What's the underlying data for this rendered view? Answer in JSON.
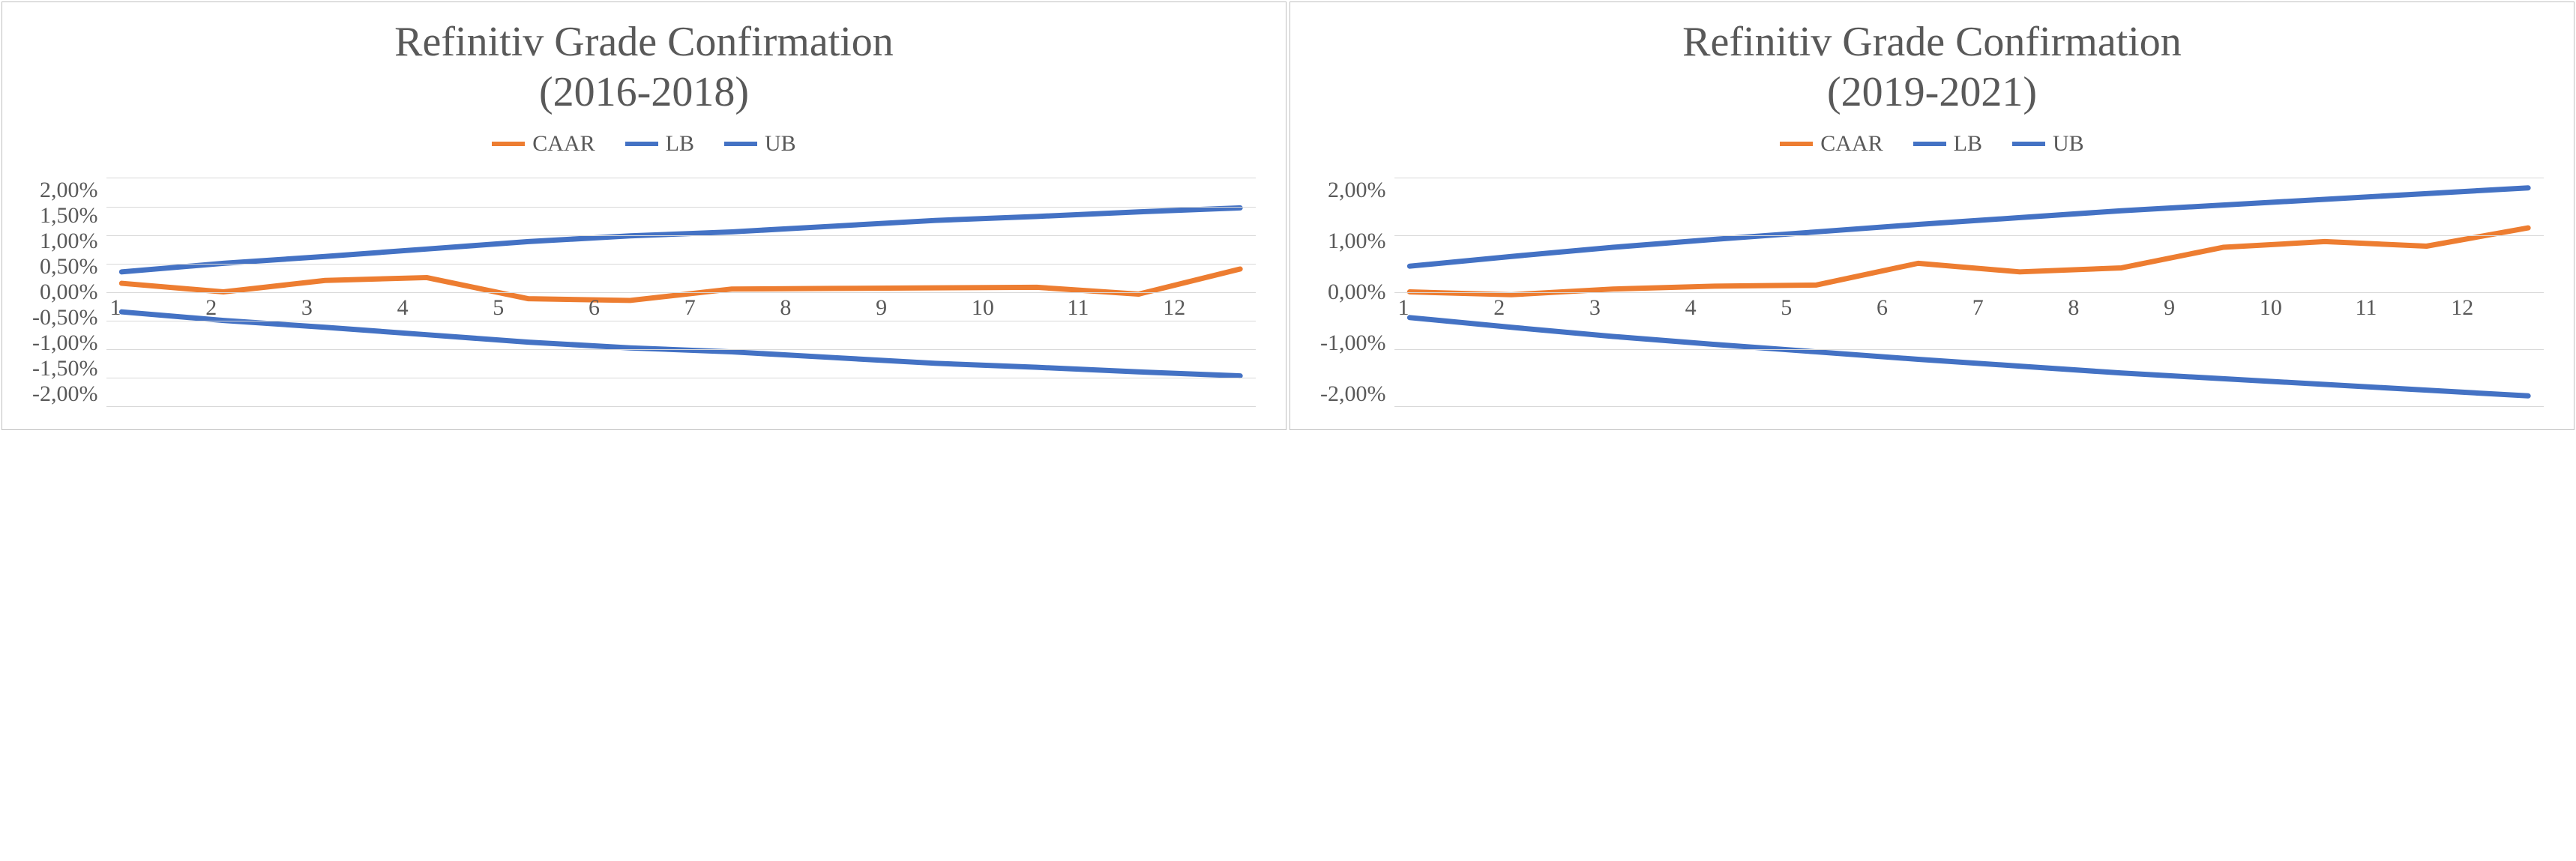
{
  "layout": {
    "title_fontsize": 56,
    "legend_fontsize": 30,
    "axis_fontsize": 30,
    "line_width": 7
  },
  "colors": {
    "caar": "#ed7d31",
    "bound": "#4472c4",
    "grid": "#d9d9d9",
    "text": "#595959",
    "background": "#ffffff",
    "border": "#c0c0c0"
  },
  "legend_labels": {
    "caar": "CAAR",
    "lb": "LB",
    "ub": "UB"
  },
  "charts": [
    {
      "title_line1": "Refinitiv Grade Confirmation",
      "title_line2": "(2016-2018)",
      "type": "line",
      "x": [
        1,
        2,
        3,
        4,
        5,
        6,
        7,
        8,
        9,
        10,
        11,
        12
      ],
      "ylim": [
        -2.0,
        2.0
      ],
      "ytick_step": 0.5,
      "yticks": [
        2.0,
        1.5,
        1.0,
        0.5,
        0.0,
        -0.5,
        -1.0,
        -1.5,
        -2.0
      ],
      "ytick_labels": [
        "2,00%",
        "1,50%",
        "1,00%",
        "0,50%",
        "0,00%",
        "-0,50%",
        "-1,00%",
        "-1,50%",
        "-2,00%"
      ],
      "series": {
        "ub": [
          0.35,
          0.5,
          0.62,
          0.75,
          0.88,
          0.98,
          1.05,
          1.15,
          1.25,
          1.32,
          1.4,
          1.47
        ],
        "lb": [
          -0.35,
          -0.5,
          -0.62,
          -0.75,
          -0.88,
          -0.98,
          -1.05,
          -1.15,
          -1.25,
          -1.32,
          -1.4,
          -1.47
        ],
        "caar": [
          0.15,
          0.0,
          0.2,
          0.25,
          -0.12,
          -0.15,
          0.05,
          0.06,
          0.07,
          0.08,
          -0.04,
          0.4
        ]
      }
    },
    {
      "title_line1": "Refinitiv Grade Confirmation",
      "title_line2": "(2019-2021)",
      "type": "line",
      "x": [
        1,
        2,
        3,
        4,
        5,
        6,
        7,
        8,
        9,
        10,
        11,
        12
      ],
      "ylim": [
        -2.0,
        2.0
      ],
      "ytick_step": 1.0,
      "yticks": [
        2.0,
        1.0,
        0.0,
        -1.0,
        -2.0
      ],
      "ytick_labels": [
        "2,00%",
        "1,00%",
        "0,00%",
        "-1,00%",
        "-2,00%"
      ],
      "series": {
        "ub": [
          0.45,
          0.62,
          0.78,
          0.92,
          1.05,
          1.18,
          1.3,
          1.42,
          1.52,
          1.62,
          1.72,
          1.82
        ],
        "lb": [
          -0.45,
          -0.62,
          -0.78,
          -0.92,
          -1.05,
          -1.18,
          -1.3,
          -1.42,
          -1.52,
          -1.62,
          -1.72,
          -1.82
        ],
        "caar": [
          0.0,
          -0.05,
          0.05,
          0.1,
          0.12,
          0.5,
          0.35,
          0.42,
          0.78,
          0.88,
          0.8,
          1.12
        ]
      }
    }
  ]
}
